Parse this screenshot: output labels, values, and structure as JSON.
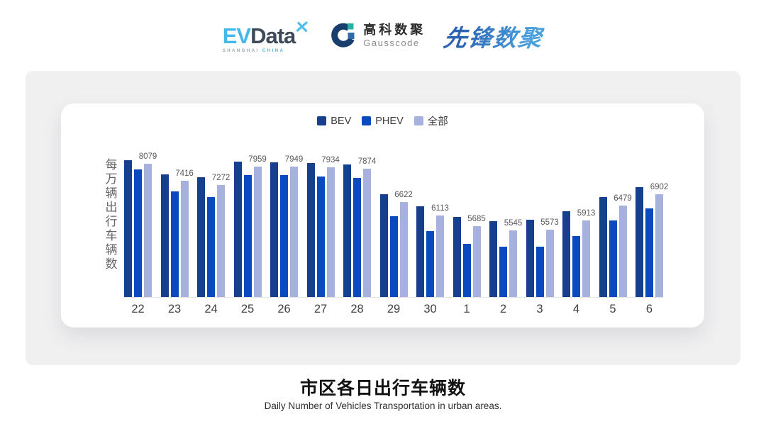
{
  "header": {
    "evdata": {
      "ev": "EV",
      "data": "Data",
      "sub_left": "SHANGHAI",
      "sub_right": "CHINA",
      "accent_color": "#45b7e8",
      "dark_color": "#3e4a59"
    },
    "gausscode": {
      "cn": "高科数聚",
      "en": "Gausscode",
      "icon_dark": "#173e6d",
      "icon_teal": "#2ab1a5",
      "icon_blue": "#2f6daa"
    },
    "pioneer": {
      "text": "先锋数聚",
      "color": "#2f74c4"
    }
  },
  "chart_data": {
    "type": "bar",
    "categories": [
      "22",
      "23",
      "24",
      "25",
      "26",
      "27",
      "28",
      "29",
      "30",
      "1",
      "2",
      "3",
      "4",
      "5",
      "6"
    ],
    "series": [
      {
        "name": "BEV",
        "color": "#16408e",
        "labels_shown": false,
        "values": [
          8210,
          7670,
          7560,
          8140,
          8120,
          8100,
          8040,
          6910,
          6440,
          6040,
          5890,
          5950,
          6260,
          6790,
          7190
        ]
      },
      {
        "name": "PHEV",
        "color": "#0a4abe",
        "labels_shown": false,
        "values": [
          7850,
          7020,
          6790,
          7630,
          7630,
          7590,
          7540,
          6080,
          5500,
          5010,
          4920,
          4910,
          5330,
          5920,
          6360
        ]
      },
      {
        "name": "全部",
        "color": "#a7b1de",
        "labels_shown": true,
        "values": [
          8079,
          7416,
          7272,
          7959,
          7949,
          7934,
          7874,
          6622,
          6113,
          5685,
          5545,
          5573,
          5913,
          6479,
          6902
        ]
      }
    ],
    "ylabel": "每万辆出行车辆数",
    "xlabel": "",
    "ylim": [
      3000,
      9200
    ],
    "grid": false,
    "legend_position": "top",
    "label_color": "#595959",
    "axis_line_color": "#e4e4e6"
  },
  "footer": {
    "title": "市区各日出行车辆数",
    "subtitle": "Daily Number of Vehicles Transportation in urban areas."
  }
}
